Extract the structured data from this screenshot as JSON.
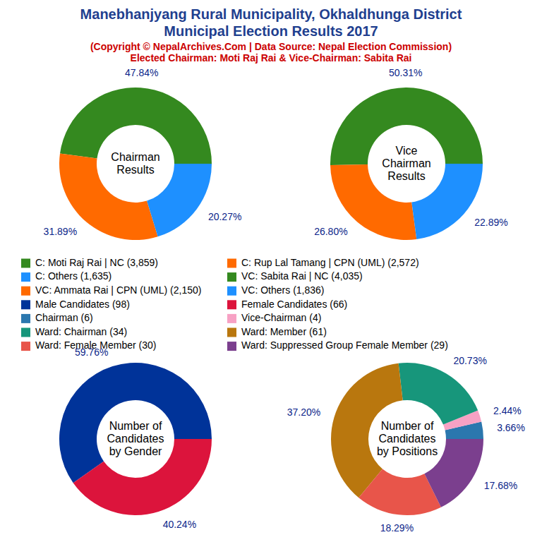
{
  "title": [
    "Manebhanjyang Rural Municipality, Okhaldhunga District",
    "Municipal Election Results 2017"
  ],
  "subtitle": [
    "(Copyright © NepalArchives.Com | Data Source: Nepal Election Commission)",
    "Elected Chairman: Moti Raj Rai & Vice-Chairman: Sabita Rai"
  ],
  "chart_data": [
    {
      "type": "donut",
      "title": "Chairman\nResults",
      "categories": [
        "C: Moti Raj Rai | NC (3,859)",
        "C: Rup Lal Tamang | CPN (UML) (2,572)",
        "C: Others (1,635)"
      ],
      "values": [
        47.84,
        31.89,
        20.27
      ],
      "value_labels": [
        "47.84%",
        "31.89%",
        "20.27%"
      ],
      "colors": [
        "#34891f",
        "#ff6a00",
        "#1e90ff"
      ],
      "data_labels": true
    },
    {
      "type": "donut",
      "title": "Vice\nChairman\nResults",
      "categories": [
        "VC: Sabita Rai | NC (4,035)",
        "VC: Ammata Rai | CPN (UML) (2,150)",
        "VC: Others (1,836)"
      ],
      "values": [
        50.31,
        26.8,
        22.89
      ],
      "value_labels": [
        "50.31%",
        "26.80%",
        "22.89%"
      ],
      "colors": [
        "#34891f",
        "#ff6a00",
        "#1e90ff"
      ],
      "data_labels": true
    },
    {
      "type": "donut",
      "title": "Number of\nCandidates\nby Gender",
      "categories": [
        "Male Candidates (98)",
        "Female Candidates (66)"
      ],
      "values": [
        59.76,
        40.24
      ],
      "value_labels": [
        "59.76%",
        "40.24%"
      ],
      "colors": [
        "#003399",
        "#dc143c"
      ],
      "data_labels": true
    },
    {
      "type": "donut",
      "title": "Number of\nCandidates\nby Positions",
      "categories": [
        "Chairman (6)",
        "Vice-Chairman (4)",
        "Ward: Chairman (34)",
        "Ward: Member (61)",
        "Ward: Female Member (30)",
        "Ward: Suppressed Group Female Member (29)"
      ],
      "values": [
        3.66,
        2.44,
        20.73,
        37.2,
        18.29,
        17.68
      ],
      "value_labels": [
        "3.66%",
        "2.44%",
        "20.73%",
        "37.20%",
        "18.29%",
        "17.68%"
      ],
      "colors": [
        "#2b77ae",
        "#f7a1c4",
        "#17967b",
        "#b9770e",
        "#e8554a",
        "#7b3f8e"
      ],
      "data_labels": true
    }
  ]
}
